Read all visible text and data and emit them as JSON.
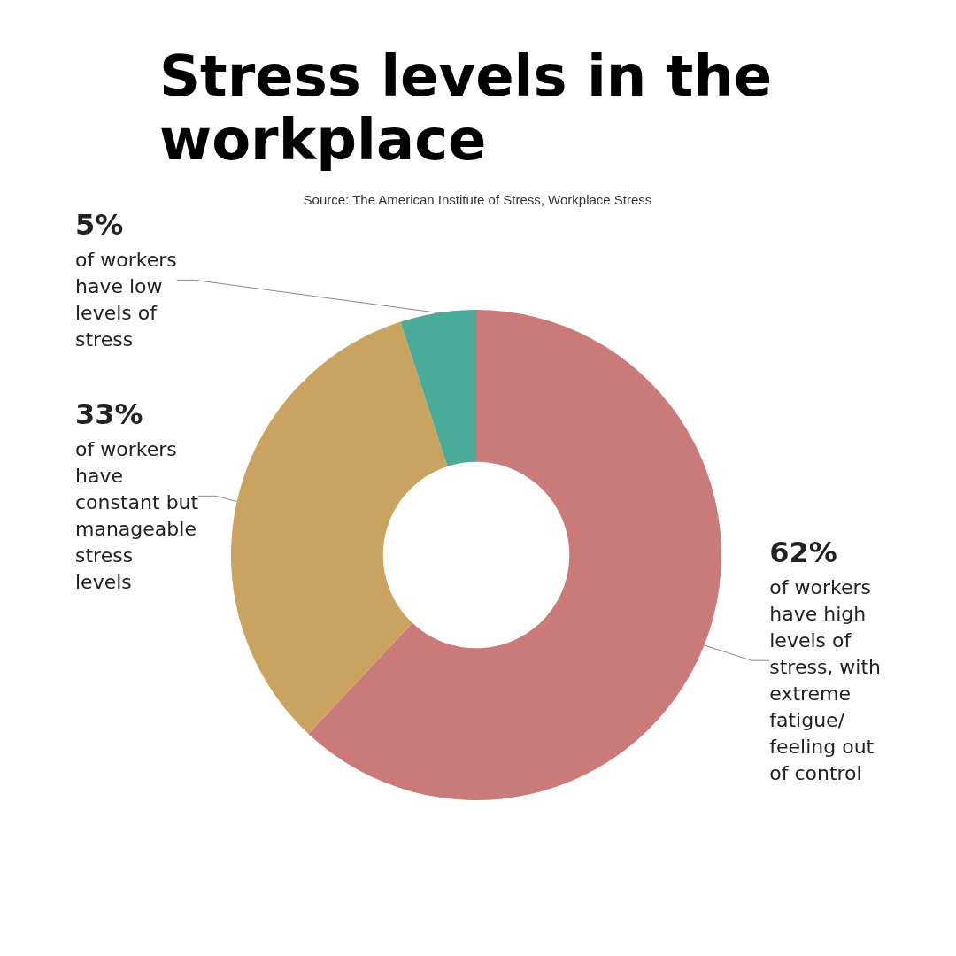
{
  "chart_data": {
    "type": "donut",
    "title": "Stress levels in the workplace",
    "annotations": [
      "Source: The American Institute of Stress, Workplace Stress"
    ],
    "categories": [
      "of workers have high levels of stress, with extreme fatigue/ feeling out of control",
      "of workers have constant but manageable stress levels",
      "of workers have low levels of stress"
    ],
    "values": [
      62,
      33,
      5
    ],
    "value_labels": [
      "62%",
      "33%",
      "5%"
    ],
    "colors": [
      "#cb7a7a",
      "#c9a35f",
      "#4aab99"
    ],
    "legend": false
  }
}
